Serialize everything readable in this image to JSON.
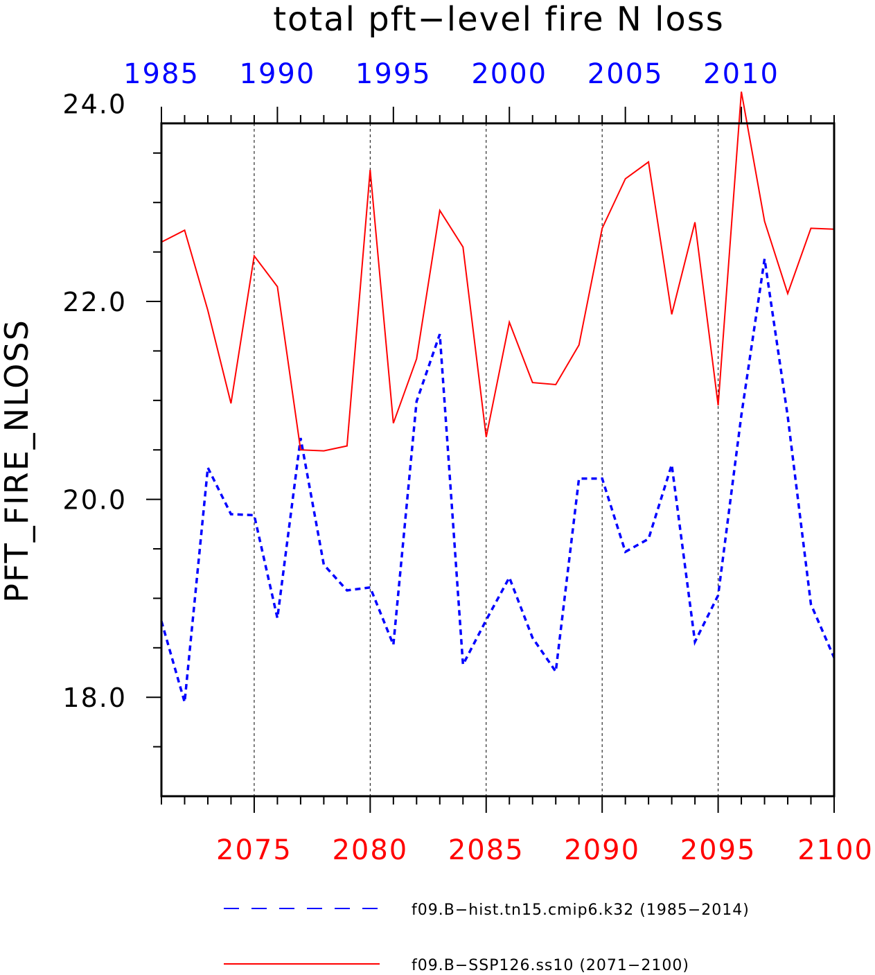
{
  "colors": {
    "hist": "#0000ff",
    "ssp": "#ff0000",
    "axis": "#000000",
    "grid": "#000000"
  },
  "chart_data": {
    "type": "line",
    "title": "total pft−level fire N loss",
    "ylabel": "PFT_FIRE_NLOSS",
    "ylim": [
      17.0,
      23.8
    ],
    "yticks": [
      18.0,
      20.0,
      22.0,
      24.0
    ],
    "ytick_labels": [
      "18.0",
      "20.0",
      "22.0",
      "24.0"
    ],
    "grid": "vertical dashed lines at labeled x ticks",
    "legend_position": "bottom",
    "x_top": {
      "range": [
        1985,
        2014
      ],
      "ticks": [
        1985,
        1990,
        1995,
        2000,
        2005,
        2010
      ],
      "tick_labels": [
        "1985",
        "1990",
        "1995",
        "2000",
        "2005",
        "2010"
      ]
    },
    "x_bottom": {
      "range": [
        2071,
        2100
      ],
      "ticks": [
        2075,
        2080,
        2085,
        2090,
        2095,
        2100
      ],
      "tick_labels": [
        "2075",
        "2080",
        "2085",
        "2090",
        "2095",
        "2100"
      ]
    },
    "series": [
      {
        "name": "f09.B−hist.tn15.cmip6.k32 (1985−2014)",
        "style": "dashed",
        "axis": "top",
        "x": [
          1985,
          1986,
          1987,
          1988,
          1989,
          1990,
          1991,
          1992,
          1993,
          1994,
          1995,
          1996,
          1997,
          1998,
          1999,
          2000,
          2001,
          2002,
          2003,
          2004,
          2005,
          2006,
          2007,
          2008,
          2009,
          2010,
          2011,
          2012,
          2013,
          2014
        ],
        "values": [
          18.77,
          17.95,
          20.32,
          19.85,
          19.84,
          18.8,
          20.62,
          19.34,
          19.08,
          19.11,
          18.53,
          20.99,
          21.67,
          18.33,
          18.78,
          19.21,
          18.6,
          18.26,
          20.21,
          20.21,
          19.47,
          19.6,
          20.35,
          18.56,
          19.03,
          20.85,
          22.43,
          20.84,
          18.94,
          18.4
        ]
      },
      {
        "name": "f09.B−SSP126.ss10 (2071−2100)",
        "style": "solid",
        "axis": "bottom",
        "x": [
          2071,
          2072,
          2073,
          2074,
          2075,
          2076,
          2077,
          2078,
          2079,
          2080,
          2081,
          2082,
          2083,
          2084,
          2085,
          2086,
          2087,
          2088,
          2089,
          2090,
          2091,
          2092,
          2093,
          2094,
          2095,
          2096,
          2097,
          2098,
          2099,
          2100
        ],
        "values": [
          22.6,
          22.72,
          21.91,
          20.97,
          22.46,
          22.15,
          20.5,
          20.49,
          20.54,
          23.33,
          20.77,
          21.42,
          22.92,
          22.55,
          20.63,
          21.79,
          21.18,
          21.16,
          21.56,
          22.74,
          23.24,
          23.41,
          21.87,
          22.8,
          20.95,
          24.12,
          22.81,
          22.08,
          22.74,
          22.73
        ]
      }
    ]
  },
  "legend": {
    "items": [
      {
        "label": "f09.B−hist.tn15.cmip6.k32 (1985−2014)",
        "style": "dashed",
        "color": "#0000ff"
      },
      {
        "label": "f09.B−SSP126.ss10 (2071−2100)",
        "style": "solid",
        "color": "#ff0000"
      }
    ]
  }
}
